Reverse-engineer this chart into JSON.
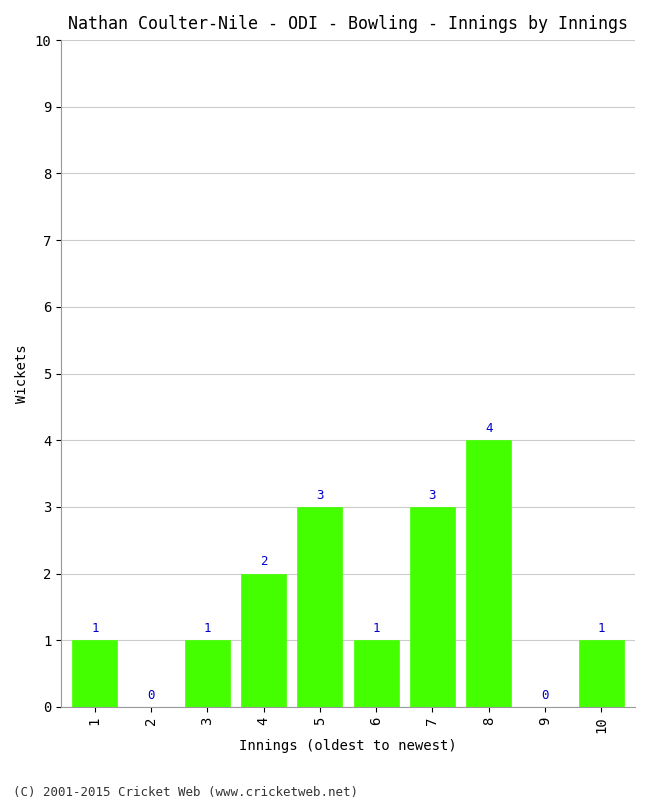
{
  "title": "Nathan Coulter-Nile - ODI - Bowling - Innings by Innings",
  "xlabel": "Innings (oldest to newest)",
  "ylabel": "Wickets",
  "categories": [
    "1",
    "2",
    "3",
    "4",
    "5",
    "6",
    "7",
    "8",
    "9",
    "10"
  ],
  "values": [
    1,
    0,
    1,
    2,
    3,
    1,
    3,
    4,
    0,
    1
  ],
  "bar_color": "#44ff00",
  "bar_edge_color": "#44ff00",
  "label_color": "#0000cc",
  "ylim": [
    0,
    10
  ],
  "yticks": [
    0,
    1,
    2,
    3,
    4,
    5,
    6,
    7,
    8,
    9,
    10
  ],
  "grid_color": "#cccccc",
  "background_color": "#ffffff",
  "title_fontsize": 12,
  "axis_fontsize": 10,
  "tick_fontsize": 10,
  "label_fontsize": 9,
  "footer": "(C) 2001-2015 Cricket Web (www.cricketweb.net)",
  "footer_fontsize": 9
}
